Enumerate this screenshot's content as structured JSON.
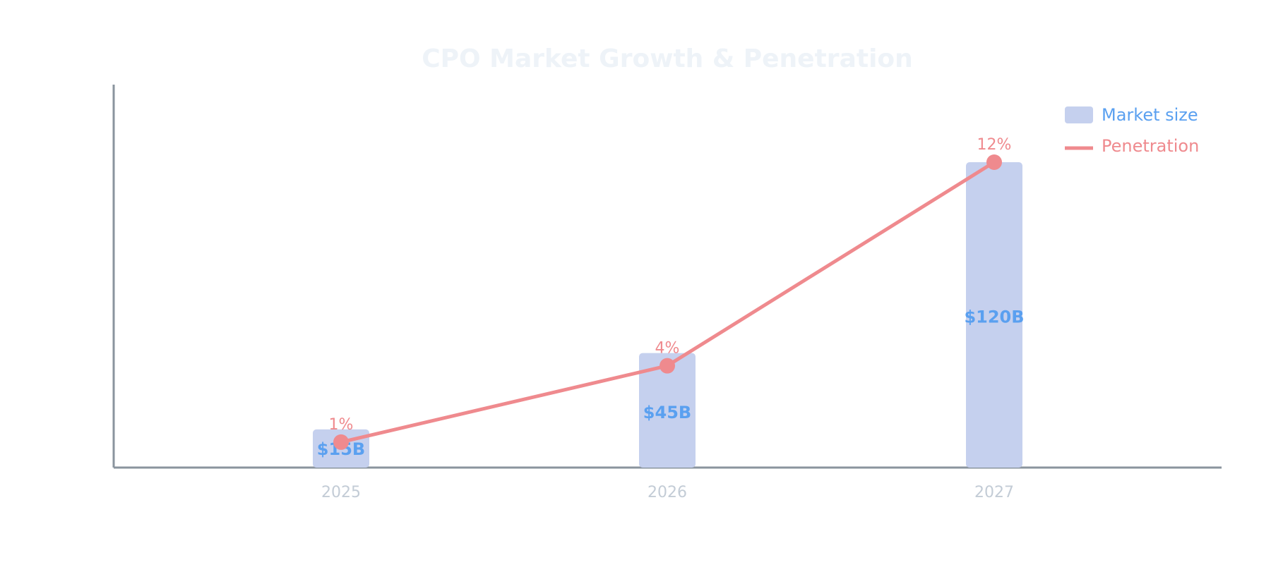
{
  "chart_data": {
    "type": "bar",
    "title": "CPO Market Growth & Penetration",
    "categories": [
      "2025",
      "2026",
      "2027"
    ],
    "series": [
      {
        "name": "Market size",
        "kind": "bar",
        "values": [
          15,
          45,
          120
        ],
        "labels": [
          "$15B",
          "$45B",
          "$120B"
        ],
        "unit": "$B"
      },
      {
        "name": "Penetration",
        "kind": "line",
        "values": [
          1,
          4,
          12
        ],
        "labels": [
          "1%",
          "4%",
          "12%"
        ],
        "unit": "%"
      }
    ],
    "ylim_bars": [
      0,
      120
    ],
    "ylim_line": [
      0,
      12
    ],
    "grid": false,
    "legend_position": "top-right"
  },
  "colors": {
    "bar": "#c5d0ee",
    "bar_label": "#5aa0f0",
    "line": "#ef8a8e",
    "axis": "#8a949e",
    "tick": "#c3ccd6",
    "title": "#eef3f8"
  }
}
